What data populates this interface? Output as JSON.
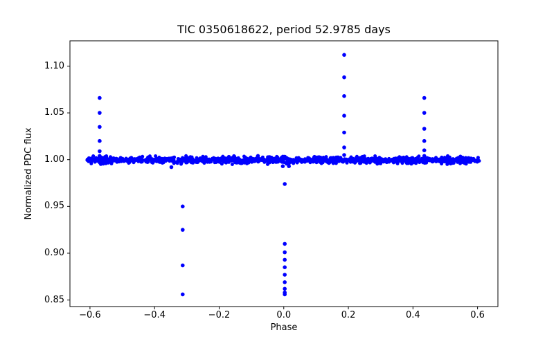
{
  "figure": {
    "background_color": "#ffffff",
    "axis_color": "#000000"
  },
  "chart_data": {
    "type": "scatter",
    "title": "TIC 0350618622, period 52.9785 days",
    "xlabel": "Phase",
    "ylabel": "Normalized PDC flux",
    "xlim": [
      -0.662,
      0.663
    ],
    "ylim": [
      0.843,
      1.127
    ],
    "grid": false,
    "legend": false,
    "marker_color": "#0000ff",
    "xticks": [
      -0.6,
      -0.4,
      -0.2,
      0.0,
      0.2,
      0.4,
      0.6
    ],
    "xtick_labels": [
      "−0.6",
      "−0.4",
      "−0.2",
      "0.0",
      "0.2",
      "0.4",
      "0.6"
    ],
    "yticks": [
      0.85,
      0.9,
      0.95,
      1.0,
      1.05,
      1.1
    ],
    "ytick_labels": [
      "0.85",
      "0.90",
      "0.95",
      "1.00",
      "1.05",
      "1.10"
    ],
    "band": {
      "description": "dense out-of-eclipse baseline of phase-folded light curve",
      "phase_min": -0.609,
      "phase_max": 0.606,
      "flux_center": 0.9995,
      "flux_scatter": 0.0016,
      "n_points": 1200
    },
    "spikes": [
      {
        "phase": -0.57,
        "fluxes": [
          1.004,
          1.009,
          1.02,
          1.035,
          1.05,
          1.066
        ]
      },
      {
        "phase": -0.313,
        "fluxes": [
          0.856,
          0.887,
          0.925,
          0.95
        ]
      },
      {
        "phase": 0.003,
        "fluxes": [
          0.856,
          0.858,
          0.862,
          0.869,
          0.877,
          0.885,
          0.893,
          0.901,
          0.91,
          0.974
        ]
      },
      {
        "phase": 0.187,
        "fluxes": [
          1.005,
          1.013,
          1.029,
          1.047,
          1.068,
          1.088,
          1.112
        ]
      },
      {
        "phase": 0.435,
        "fluxes": [
          1.004,
          1.01,
          1.02,
          1.033,
          1.05,
          1.066
        ]
      }
    ],
    "outliers": [
      {
        "phase": -0.348,
        "flux": 0.992
      },
      {
        "phase": -0.003,
        "flux": 0.993
      },
      {
        "phase": 0.016,
        "flux": 0.993
      },
      {
        "phase": -0.08,
        "flux": 1.004
      },
      {
        "phase": -0.17,
        "flux": 1.003
      },
      {
        "phase": 0.095,
        "flux": 1.003
      }
    ]
  }
}
